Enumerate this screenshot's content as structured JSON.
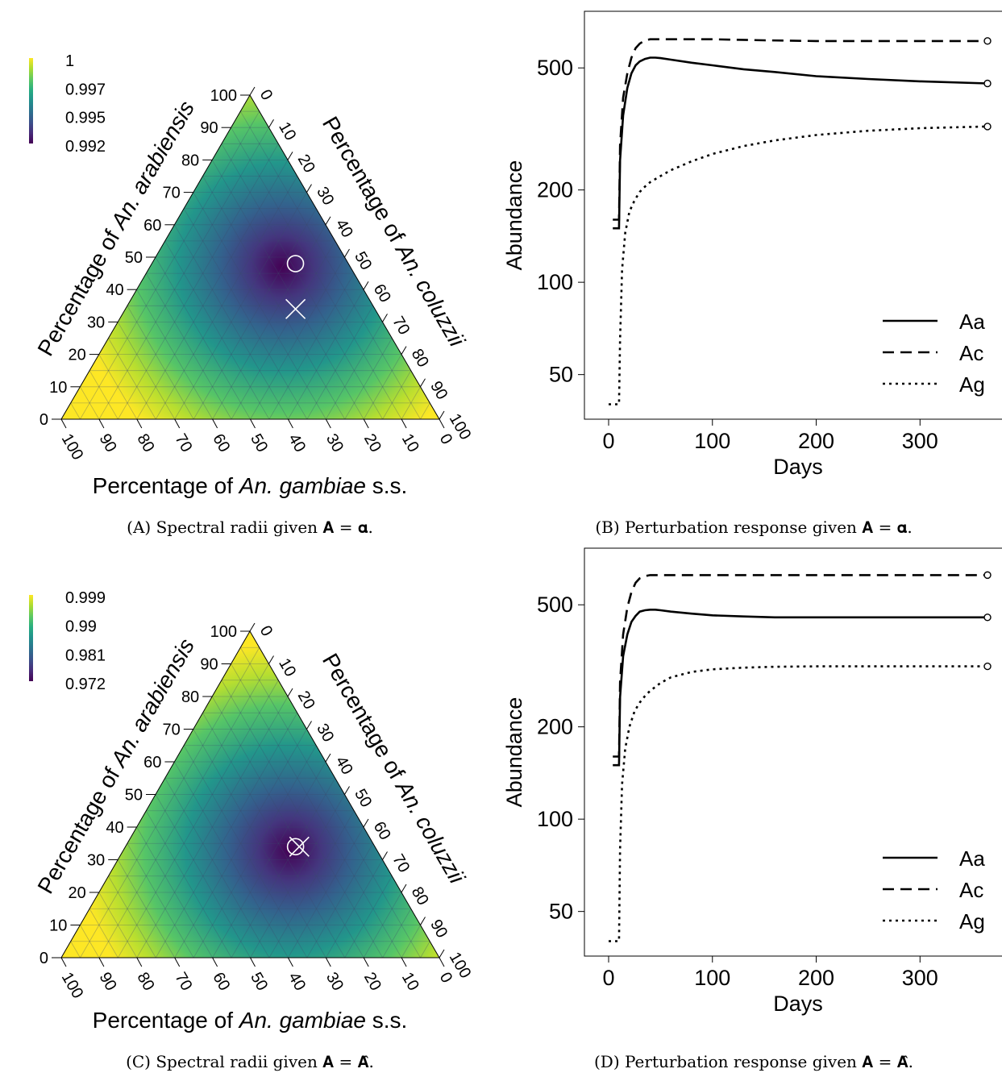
{
  "chart_data": [
    {
      "type": "heatmap",
      "subtype": "ternary",
      "panel": "(A)",
      "caption": "Spectral radii given 𝐀 = 𝛂.",
      "colorscale": "viridis",
      "colorbar_ticks": [
        "1",
        "0.997",
        "0.995",
        "0.992"
      ],
      "colorbar_range": [
        0.992,
        1.0
      ],
      "minimum_region": {
        "arabiensis": 47,
        "coluzzii": 35,
        "gambiae": 18
      },
      "axes": {
        "left": {
          "prefix": "Percentage of ",
          "species": "An. arabiensis",
          "suffix": "",
          "ticks": [
            "0",
            "10",
            "20",
            "30",
            "40",
            "50",
            "60",
            "70",
            "80",
            "90",
            "100"
          ]
        },
        "right": {
          "prefix": "Percentage of ",
          "species": "An. coluzzii",
          "suffix": "",
          "ticks": [
            "0",
            "10",
            "20",
            "30",
            "40",
            "50",
            "60",
            "70",
            "80",
            "90",
            "100"
          ]
        },
        "bottom": {
          "prefix": "Percentage of ",
          "species": "An. gambiae",
          "suffix": " s.s.",
          "ticks": [
            "100",
            "90",
            "80",
            "70",
            "60",
            "50",
            "40",
            "30",
            "20",
            "10",
            "0"
          ]
        }
      },
      "markers": [
        {
          "symbol": "circle",
          "arabiensis": 48,
          "coluzzii": 38,
          "gambiae": 14
        },
        {
          "symbol": "cross",
          "arabiensis": 34,
          "coluzzii": 45,
          "gambiae": 21
        }
      ]
    },
    {
      "type": "line",
      "panel": "(B)",
      "caption": "Perturbation response given 𝐀 = 𝛂.",
      "xlabel": "Days",
      "ylabel": "Abundance",
      "xlim": [
        0,
        365
      ],
      "ylim": [
        38,
        720
      ],
      "yscale": "log",
      "xticks": [
        "0",
        "100",
        "200",
        "300"
      ],
      "yticks": [
        "50",
        "100",
        "200",
        "500"
      ],
      "legend_position": "bottom-right",
      "series": [
        {
          "name": "Aa",
          "dash": "solid",
          "end_marker": "circle",
          "x": [
            4,
            10,
            11,
            14,
            18,
            22,
            26,
            30,
            35,
            40,
            45,
            50,
            60,
            80,
            100,
            130,
            160,
            200,
            250,
            300,
            365
          ],
          "y": [
            150,
            150,
            250,
            350,
            430,
            480,
            510,
            525,
            535,
            540,
            540,
            538,
            532,
            520,
            510,
            495,
            485,
            470,
            460,
            452,
            445
          ]
        },
        {
          "name": "Ac",
          "dash": "dashed",
          "end_marker": "circle",
          "x": [
            4,
            10,
            11,
            14,
            18,
            22,
            26,
            30,
            35,
            40,
            45,
            50,
            60,
            80,
            100,
            150,
            200,
            250,
            300,
            365
          ],
          "y": [
            160,
            160,
            280,
            400,
            480,
            540,
            580,
            600,
            615,
            620,
            620,
            620,
            620,
            620,
            620,
            615,
            612,
            612,
            612,
            612
          ]
        },
        {
          "name": "Ag",
          "dash": "dotted",
          "end_marker": "circle",
          "x": [
            0,
            10,
            11,
            13,
            16,
            20,
            25,
            30,
            35,
            40,
            50,
            60,
            80,
            100,
            130,
            160,
            200,
            250,
            300,
            365
          ],
          "y": [
            40,
            40,
            65,
            110,
            145,
            170,
            185,
            197,
            205,
            212,
            222,
            232,
            248,
            262,
            278,
            290,
            302,
            312,
            318,
            322
          ]
        }
      ]
    },
    {
      "type": "heatmap",
      "subtype": "ternary",
      "panel": "(C)",
      "caption": "Spectral radii given 𝐀 = 𝐀̂.",
      "colorscale": "viridis",
      "colorbar_ticks": [
        "0.999",
        "0.99",
        "0.981",
        "0.972"
      ],
      "colorbar_range": [
        0.972,
        0.999
      ],
      "minimum_region": {
        "arabiensis": 33,
        "coluzzii": 44,
        "gambiae": 23
      },
      "axes": {
        "left": {
          "prefix": "Percentage of ",
          "species": "An. arabiensis",
          "suffix": "",
          "ticks": [
            "0",
            "10",
            "20",
            "30",
            "40",
            "50",
            "60",
            "70",
            "80",
            "90",
            "100"
          ]
        },
        "right": {
          "prefix": "Percentage of ",
          "species": "An. coluzzii",
          "suffix": "",
          "ticks": [
            "0",
            "10",
            "20",
            "30",
            "40",
            "50",
            "60",
            "70",
            "80",
            "90",
            "100"
          ]
        },
        "bottom": {
          "prefix": "Percentage of ",
          "species": "An. gambiae",
          "suffix": " s.s.",
          "ticks": [
            "100",
            "90",
            "80",
            "70",
            "60",
            "50",
            "40",
            "30",
            "20",
            "10",
            "0"
          ]
        }
      },
      "markers": [
        {
          "symbol": "circle",
          "arabiensis": 34,
          "coluzzii": 45,
          "gambiae": 21
        },
        {
          "symbol": "cross",
          "arabiensis": 34,
          "coluzzii": 46,
          "gambiae": 20
        }
      ]
    },
    {
      "type": "line",
      "panel": "(D)",
      "caption": "Perturbation response given 𝐀 = 𝐀̂.",
      "xlabel": "Days",
      "ylabel": "Abundance",
      "xlim": [
        0,
        365
      ],
      "ylim": [
        38,
        720
      ],
      "yscale": "log",
      "xticks": [
        "0",
        "100",
        "200",
        "300"
      ],
      "yticks": [
        "50",
        "100",
        "200",
        "500"
      ],
      "legend_position": "bottom-right",
      "series": [
        {
          "name": "Aa",
          "dash": "solid",
          "end_marker": "circle",
          "x": [
            4,
            10,
            11,
            14,
            18,
            22,
            26,
            30,
            35,
            40,
            45,
            50,
            60,
            80,
            100,
            130,
            160,
            200,
            250,
            300,
            365
          ],
          "y": [
            150,
            150,
            250,
            340,
            400,
            440,
            460,
            475,
            480,
            482,
            482,
            480,
            475,
            468,
            462,
            458,
            455,
            455,
            455,
            455,
            455
          ]
        },
        {
          "name": "Ac",
          "dash": "dashed",
          "end_marker": "circle",
          "x": [
            4,
            10,
            11,
            14,
            18,
            22,
            26,
            30,
            35,
            40,
            45,
            50,
            60,
            80,
            100,
            150,
            200,
            250,
            300,
            365
          ],
          "y": [
            160,
            160,
            280,
            400,
            490,
            550,
            590,
            610,
            620,
            625,
            625,
            625,
            625,
            625,
            625,
            625,
            625,
            625,
            625,
            625
          ]
        },
        {
          "name": "Ag",
          "dash": "dotted",
          "end_marker": "circle",
          "x": [
            0,
            10,
            11,
            13,
            16,
            20,
            25,
            30,
            35,
            40,
            50,
            60,
            80,
            100,
            130,
            160,
            200,
            250,
            300,
            365
          ],
          "y": [
            40,
            40,
            80,
            130,
            170,
            200,
            225,
            240,
            252,
            262,
            278,
            290,
            302,
            308,
            312,
            314,
            315,
            315,
            315,
            315
          ]
        }
      ]
    }
  ]
}
